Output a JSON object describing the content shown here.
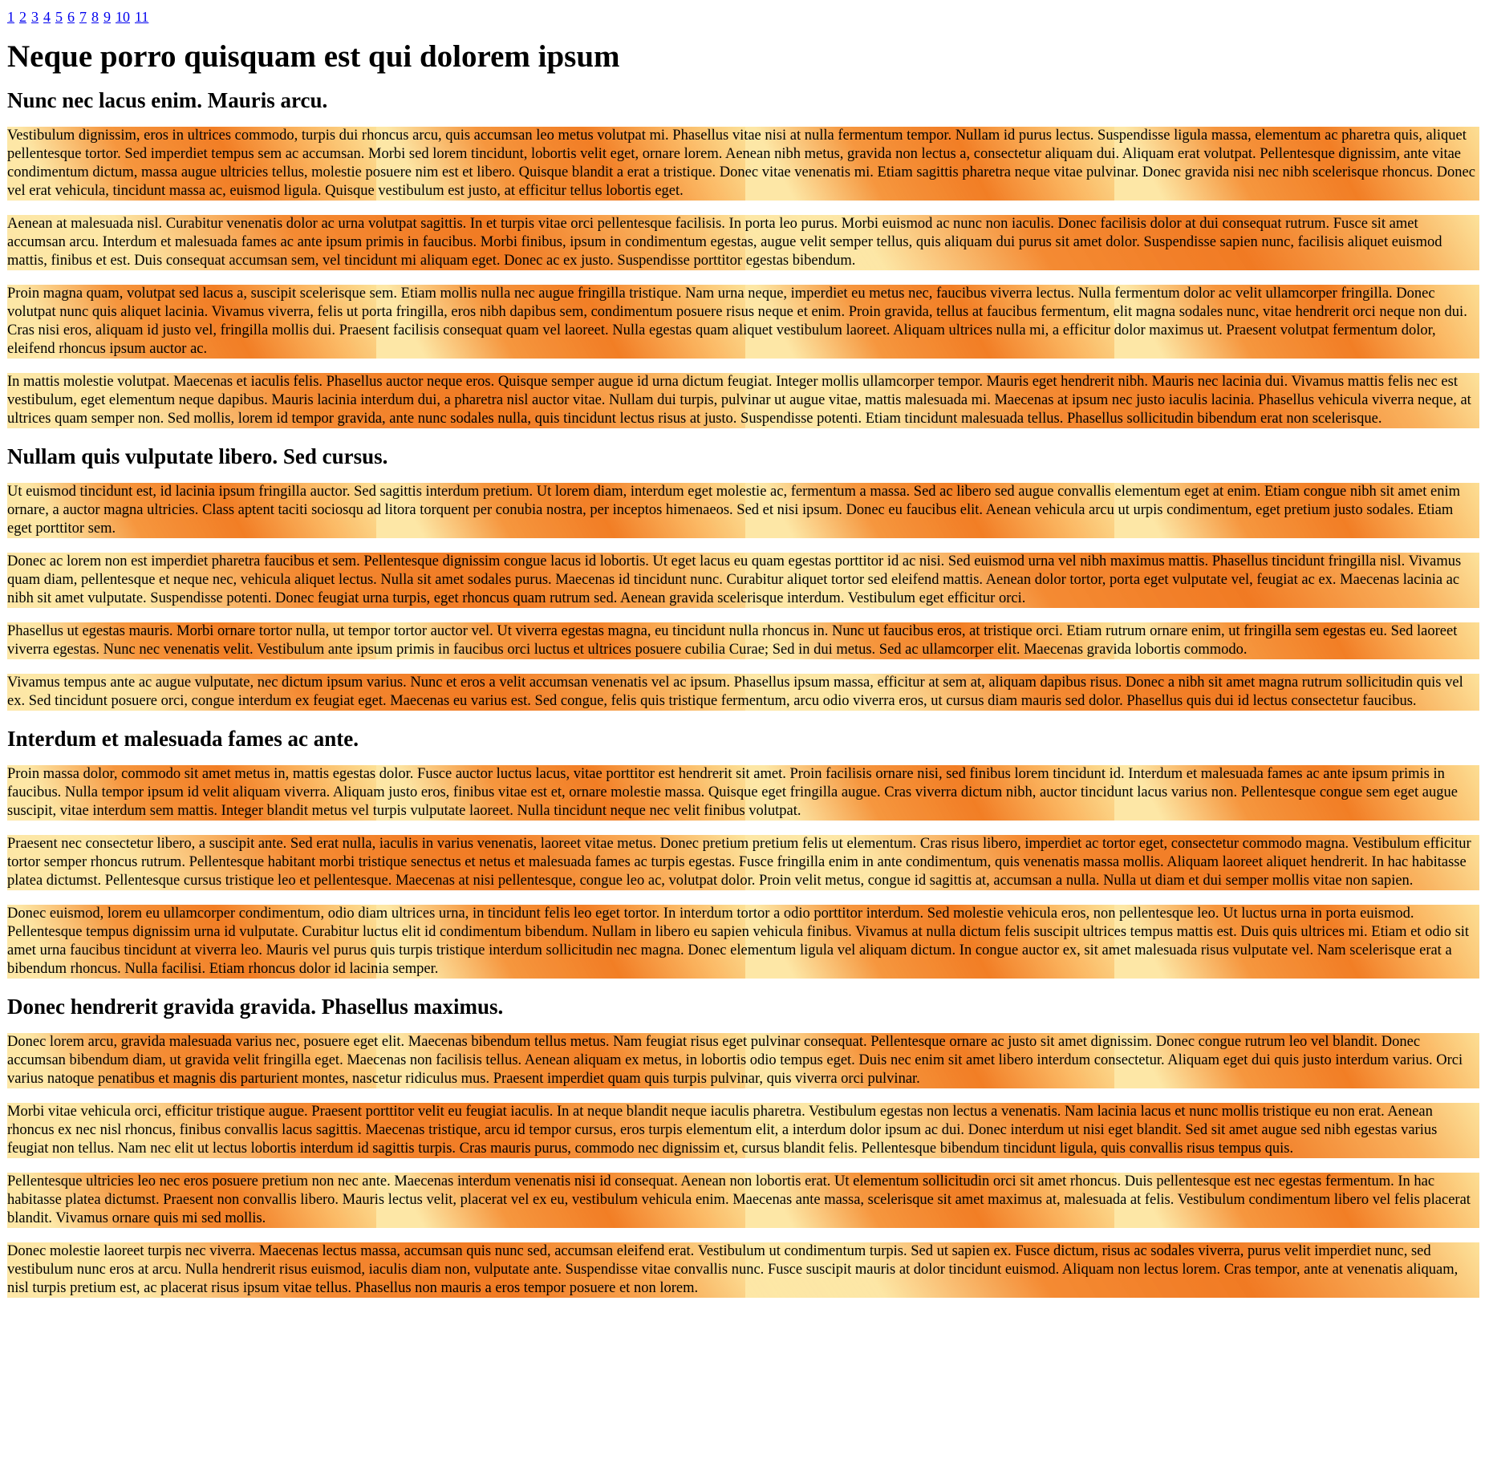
{
  "pagination": [
    "1",
    "2",
    "3",
    "4",
    "5",
    "6",
    "7",
    "8",
    "9",
    "10",
    "11"
  ],
  "title": "Neque porro quisquam est qui dolorem ipsum",
  "sections": [
    {
      "heading": "Nunc nec lacus enim. Mauris arcu.",
      "paragraphs": [
        "Vestibulum dignissim, eros in ultrices commodo, turpis dui rhoncus arcu, quis accumsan leo metus volutpat mi. Phasellus vitae nisi at nulla fermentum tempor. Nullam id purus lectus. Suspendisse ligula massa, elementum ac pharetra quis, aliquet pellentesque tortor. Sed imperdiet tempus sem ac accumsan. Morbi sed lorem tincidunt, lobortis velit eget, ornare lorem. Aenean nibh metus, gravida non lectus a, consectetur aliquam dui. Aliquam erat volutpat. Pellentesque dignissim, ante vitae condimentum dictum, massa augue ultricies tellus, molestie posuere nim est et libero. Quisque blandit a erat a tristique. Donec vitae venenatis mi. Etiam sagittis pharetra neque vitae pulvinar. Donec gravida nisi nec nibh scelerisque rhoncus. Donec vel erat vehicula, tincidunt massa ac, euismod ligula. Quisque vestibulum est justo, at efficitur tellus lobortis eget.",
        "Aenean at malesuada nisl. Curabitur venenatis dolor ac urna volutpat sagittis. In et turpis vitae orci pellentesque facilisis. In porta leo purus. Morbi euismod ac nunc non iaculis. Donec facilisis dolor at dui consequat rutrum. Fusce sit amet accumsan arcu. Interdum et malesuada fames ac ante ipsum primis in faucibus. Morbi finibus, ipsum in condimentum egestas, augue velit semper tellus, quis aliquam dui purus sit amet dolor. Suspendisse sapien nunc, facilisis aliquet euismod mattis, finibus et est. Duis consequat accumsan sem, vel tincidunt mi aliquam eget. Donec ac ex justo. Suspendisse porttitor egestas bibendum.",
        "Proin magna quam, volutpat sed lacus a, suscipit scelerisque sem. Etiam mollis nulla nec augue fringilla tristique. Nam urna neque, imperdiet eu metus nec, faucibus viverra lectus. Nulla fermentum dolor ac velit ullamcorper fringilla. Donec volutpat nunc quis aliquet lacinia. Vivamus viverra, felis ut porta fringilla, eros nibh dapibus sem, condimentum posuere risus neque et enim. Proin gravida, tellus at faucibus fermentum, elit magna sodales nunc, vitae hendrerit orci neque non dui. Cras nisi eros, aliquam id justo vel, fringilla mollis dui. Praesent facilisis consequat quam vel laoreet. Nulla egestas quam aliquet vestibulum laoreet. Aliquam ultrices nulla mi, a efficitur dolor maximus ut. Praesent volutpat fermentum dolor, eleifend rhoncus ipsum auctor ac.",
        "In mattis molestie volutpat. Maecenas et iaculis felis. Phasellus auctor neque eros. Quisque semper augue id urna dictum feugiat. Integer mollis ullamcorper tempor. Mauris eget hendrerit nibh. Mauris nec lacinia dui. Vivamus mattis felis nec est vestibulum, eget elementum neque dapibus. Mauris lacinia interdum dui, a pharetra nisl auctor vitae. Nullam dui turpis, pulvinar ut augue vitae, mattis malesuada mi. Maecenas at ipsum nec justo iaculis lacinia. Phasellus vehicula viverra neque, at ultrices quam semper non. Sed mollis, lorem id tempor gravida, ante nunc sodales nulla, quis tincidunt lectus risus at justo. Suspendisse potenti. Etiam tincidunt malesuada tellus. Phasellus sollicitudin bibendum erat non scelerisque."
      ]
    },
    {
      "heading": "Nullam quis vulputate libero. Sed cursus.",
      "paragraphs": [
        "Ut euismod tincidunt est, id lacinia ipsum fringilla auctor. Sed sagittis interdum pretium. Ut lorem diam, interdum eget molestie ac, fermentum a massa. Sed ac libero sed augue convallis elementum eget at enim. Etiam congue nibh sit amet enim ornare, a auctor magna ultricies. Class aptent taciti sociosqu ad litora torquent per conubia nostra, per inceptos himenaeos. Sed et nisi ipsum. Donec eu faucibus elit. Aenean vehicula arcu ut urpis condimentum, eget pretium justo sodales. Etiam eget porttitor sem.",
        "Donec ac lorem non est imperdiet pharetra faucibus et sem. Pellentesque dignissim congue lacus id lobortis. Ut eget lacus eu quam egestas porttitor id ac nisi. Sed euismod urna vel nibh maximus mattis. Phasellus tincidunt fringilla nisl. Vivamus quam diam, pellentesque et neque nec, vehicula aliquet lectus. Nulla sit amet sodales purus. Maecenas id tincidunt nunc. Curabitur aliquet tortor sed eleifend mattis. Aenean dolor tortor, porta eget vulputate vel, feugiat ac ex. Maecenas lacinia ac nibh sit amet vulputate. Suspendisse potenti. Donec feugiat urna turpis, eget rhoncus quam rutrum sed. Aenean gravida scelerisque interdum. Vestibulum eget efficitur orci.",
        "Phasellus ut egestas mauris. Morbi ornare tortor nulla, ut tempor tortor auctor vel. Ut viverra egestas magna, eu tincidunt nulla rhoncus in. Nunc ut faucibus eros, at tristique orci. Etiam rutrum ornare enim, ut fringilla sem egestas eu. Sed laoreet viverra egestas. Nunc nec venenatis velit. Vestibulum ante ipsum primis in faucibus orci luctus et ultrices posuere cubilia Curae; Sed in dui metus. Sed ac ullamcorper elit. Maecenas gravida lobortis commodo.",
        "Vivamus tempus ante ac augue vulputate, nec dictum ipsum varius. Nunc et eros a velit accumsan venenatis vel ac ipsum. Phasellus ipsum massa, efficitur at sem at, aliquam dapibus risus. Donec a nibh sit amet magna rutrum sollicitudin quis vel ex. Sed tincidunt posuere orci, congue interdum ex feugiat eget. Maecenas eu varius est. Sed congue, felis quis tristique fermentum, arcu odio viverra eros, ut cursus diam mauris sed dolor. Phasellus quis dui id lectus consectetur faucibus."
      ]
    },
    {
      "heading": "Interdum et malesuada fames ac ante.",
      "paragraphs": [
        "Proin massa dolor, commodo sit amet metus in, mattis egestas dolor. Fusce auctor luctus lacus, vitae porttitor est hendrerit sit amet. Proin facilisis ornare nisi, sed finibus lorem tincidunt id. Interdum et malesuada fames ac ante ipsum primis in faucibus. Nulla tempor ipsum id velit aliquam viverra. Aliquam justo eros, finibus vitae est et, ornare molestie massa. Quisque eget fringilla augue. Cras viverra dictum nibh, auctor tincidunt lacus varius non. Pellentesque congue sem eget augue suscipit, vitae interdum sem mattis. Integer blandit metus vel turpis vulputate laoreet. Nulla tincidunt neque nec velit finibus volutpat.",
        "Praesent nec consectetur libero, a suscipit ante. Sed erat nulla, iaculis in varius venenatis, laoreet vitae metus. Donec pretium pretium felis ut elementum. Cras risus libero, imperdiet ac tortor eget, consectetur commodo magna. Vestibulum efficitur tortor semper rhoncus rutrum. Pellentesque habitant morbi tristique senectus et netus et malesuada fames ac turpis egestas. Fusce fringilla enim in ante condimentum, quis venenatis massa mollis. Aliquam laoreet aliquet hendrerit. In hac habitasse platea dictumst. Pellentesque cursus tristique leo et pellentesque. Maecenas at nisi pellentesque, congue leo ac, volutpat dolor. Proin velit metus, congue id sagittis at, accumsan a nulla. Nulla ut diam et dui semper mollis vitae non sapien.",
        "Donec euismod, lorem eu ullamcorper condimentum, odio diam ultrices urna, in tincidunt felis leo eget tortor. In interdum tortor a odio porttitor interdum. Sed molestie vehicula eros, non pellentesque leo. Ut luctus urna in porta euismod. Pellentesque tempus dignissim urna id vulputate. Curabitur luctus elit id condimentum bibendum. Nullam in libero eu sapien vehicula finibus. Vivamus at nulla dictum felis suscipit ultrices tempus mattis est. Duis quis ultrices mi. Etiam et odio sit amet urna faucibus tincidunt at viverra leo. Mauris vel purus quis turpis tristique interdum sollicitudin nec magna. Donec elementum ligula vel aliquam dictum. In congue auctor ex, sit amet malesuada risus vulputate vel. Nam scelerisque erat a bibendum rhoncus. Nulla facilisi. Etiam rhoncus dolor id lacinia semper."
      ]
    },
    {
      "heading": "Donec hendrerit gravida gravida. Phasellus maximus.",
      "paragraphs": [
        "Donec lorem arcu, gravida malesuada varius nec, posuere eget elit. Maecenas bibendum tellus metus. Nam feugiat risus eget pulvinar consequat. Pellentesque ornare ac justo sit amet dignissim. Donec congue rutrum leo vel blandit. Donec accumsan bibendum diam, ut gravida velit fringilla eget. Maecenas non facilisis tellus. Aenean aliquam ex metus, in lobortis odio tempus eget. Duis nec enim sit amet libero interdum consectetur. Aliquam eget dui quis justo interdum varius. Orci varius natoque penatibus et magnis dis parturient montes, nascetur ridiculus mus. Praesent imperdiet quam quis turpis pulvinar, quis viverra orci pulvinar.",
        "Morbi vitae vehicula orci, efficitur tristique augue. Praesent porttitor velit eu feugiat iaculis. In at neque blandit neque iaculis pharetra. Vestibulum egestas non lectus a venenatis. Nam lacinia lacus et nunc mollis tristique eu non erat. Aenean rhoncus ex nec nisl rhoncus, finibus convallis lacus sagittis. Maecenas tristique, arcu id tempor cursus, eros turpis elementum elit, a interdum dolor ipsum ac dui. Donec interdum ut nisi eget blandit. Sed sit amet augue sed nibh egestas varius feugiat non tellus. Nam nec elit ut lectus lobortis interdum id sagittis turpis. Cras mauris purus, commodo nec dignissim et, cursus blandit felis. Pellentesque bibendum tincidunt ligula, quis convallis risus tempus quis.",
        "Pellentesque ultricies leo nec eros posuere pretium non nec ante. Maecenas interdum venenatis nisi id consequat. Aenean non lobortis erat. Ut elementum sollicitudin orci sit amet rhoncus. Duis pellentesque est nec egestas fermentum. In hac habitasse platea dictumst. Praesent non convallis libero. Mauris lectus velit, placerat vel ex eu, vestibulum vehicula enim. Maecenas ante massa, scelerisque sit amet maximus at, malesuada at felis. Vestibulum condimentum libero vel felis placerat blandit. Vivamus ornare quis mi sed mollis.",
        "Donec molestie laoreet turpis nec viverra. Maecenas lectus massa, accumsan quis nunc sed, accumsan eleifend erat. Vestibulum ut condimentum turpis. Sed ut sapien ex. Fusce dictum, risus ac sodales viverra, purus velit imperdiet nunc, sed vestibulum nunc eros at arcu. Nulla hendrerit risus euismod, iaculis diam non, vulputate ante. Suspendisse vitae convallis nunc. Fusce suscipit mauris at dolor tincidunt euismod. Aliquam non lectus lorem. Cras tempor, ante at venenatis aliquam, nisl turpis pretium est, ac placerat risus ipsum vitae tellus. Phasellus non mauris a eros tempor posuere et non lorem."
      ]
    }
  ]
}
